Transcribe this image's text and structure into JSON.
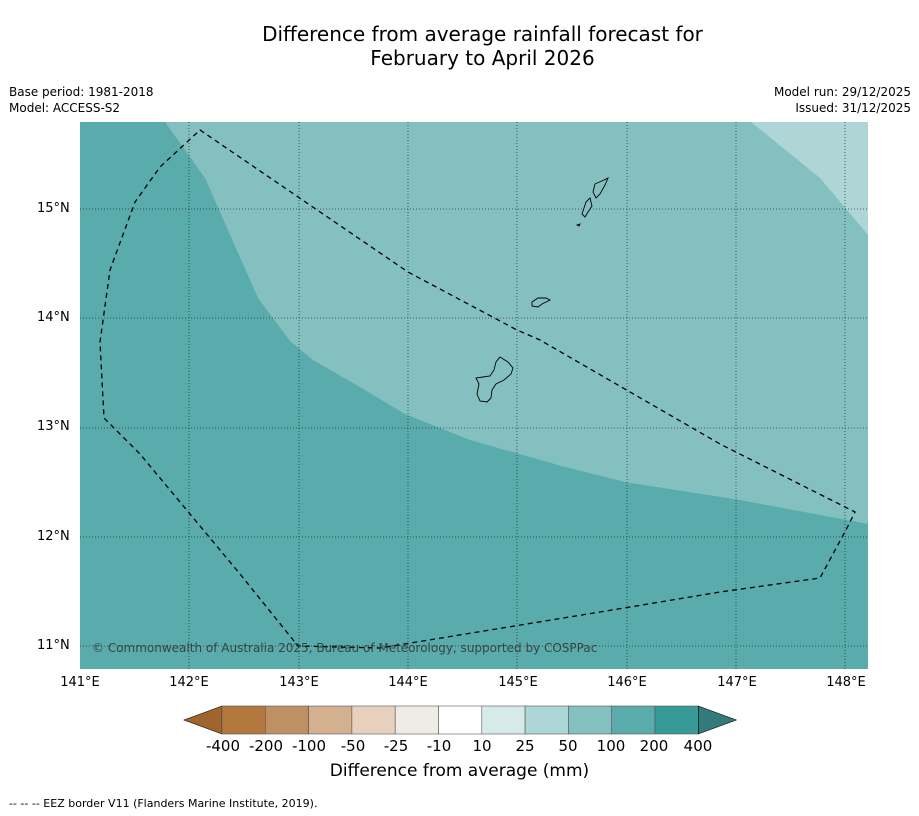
{
  "title_line1": "Difference from average rainfall forecast for",
  "title_line2": "February to April 2026",
  "base_period": "Base period: 1981-2018",
  "model": "Model: ACCESS-S2",
  "model_run": "Model run: 29/12/2025",
  "issued": "Issued: 31/12/2025",
  "copyright": "© Commonwealth of Australia 2025, Bureau of Meteorology, supported by COSPPac",
  "footer": "-- -- -- EEZ border V11 (Flanders Marine Institute, 2019).",
  "lat_ticks": [
    "15°N",
    "14°N",
    "13°N",
    "12°N",
    "11°N"
  ],
  "lon_ticks": [
    "141°E",
    "142°E",
    "143°E",
    "144°E",
    "145°E",
    "146°E",
    "147°E",
    "148°E"
  ],
  "colorbar": {
    "title": "Difference from average (mm)",
    "labels": [
      "-400",
      "-200",
      "-100",
      "-50",
      "-25",
      "-10",
      "10",
      "25",
      "50",
      "100",
      "200",
      "400"
    ],
    "colors": [
      "#a0642f",
      "#b2783e",
      "#c09065",
      "#d3b08f",
      "#e7d1be",
      "#efebe7",
      "#ffffff",
      "#d6ebe9",
      "#aed6d6",
      "#84c0bf",
      "#5aabab",
      "#369a98",
      "#347a78"
    ]
  },
  "map_fill_colors": {
    "band_100_200": "#5aabab",
    "band_50_100": "#84c0bf",
    "band_25_50": "#aed6d6"
  }
}
